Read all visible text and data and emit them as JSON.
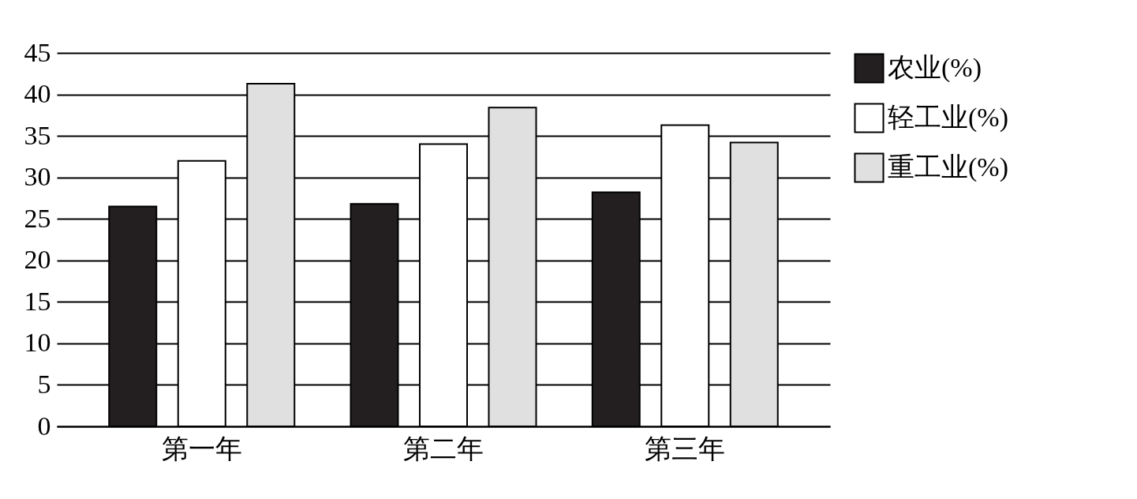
{
  "chart_data": {
    "type": "bar",
    "categories": [
      "第一年",
      "第二年",
      "第三年"
    ],
    "series": [
      {
        "name": "农业(%)",
        "color": "#231f20",
        "values": [
          26.5,
          26.8,
          28.2
        ]
      },
      {
        "name": "轻工业(%)",
        "color": "#ffffff",
        "values": [
          32,
          34,
          36.3
        ]
      },
      {
        "name": "重工业(%)",
        "color": "#e0e0e0",
        "values": [
          41.3,
          38.4,
          34.2
        ]
      }
    ],
    "ylim": [
      0,
      45
    ],
    "yticks": [
      0,
      5,
      10,
      15,
      20,
      25,
      30,
      35,
      40,
      45
    ],
    "grid": "y",
    "legend": "right"
  }
}
